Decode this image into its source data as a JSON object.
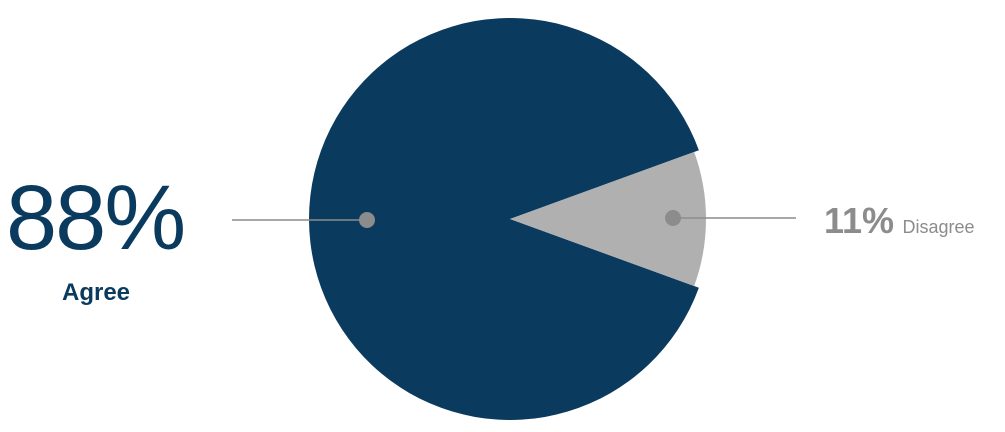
{
  "chart_data": {
    "type": "pie",
    "slices": [
      {
        "label": "Agree",
        "value": 88,
        "display": "88%",
        "color": "#0b3a5f"
      },
      {
        "label": "Disagree",
        "value": 11,
        "display": "11%",
        "color": "#b0b0b0"
      }
    ]
  }
}
